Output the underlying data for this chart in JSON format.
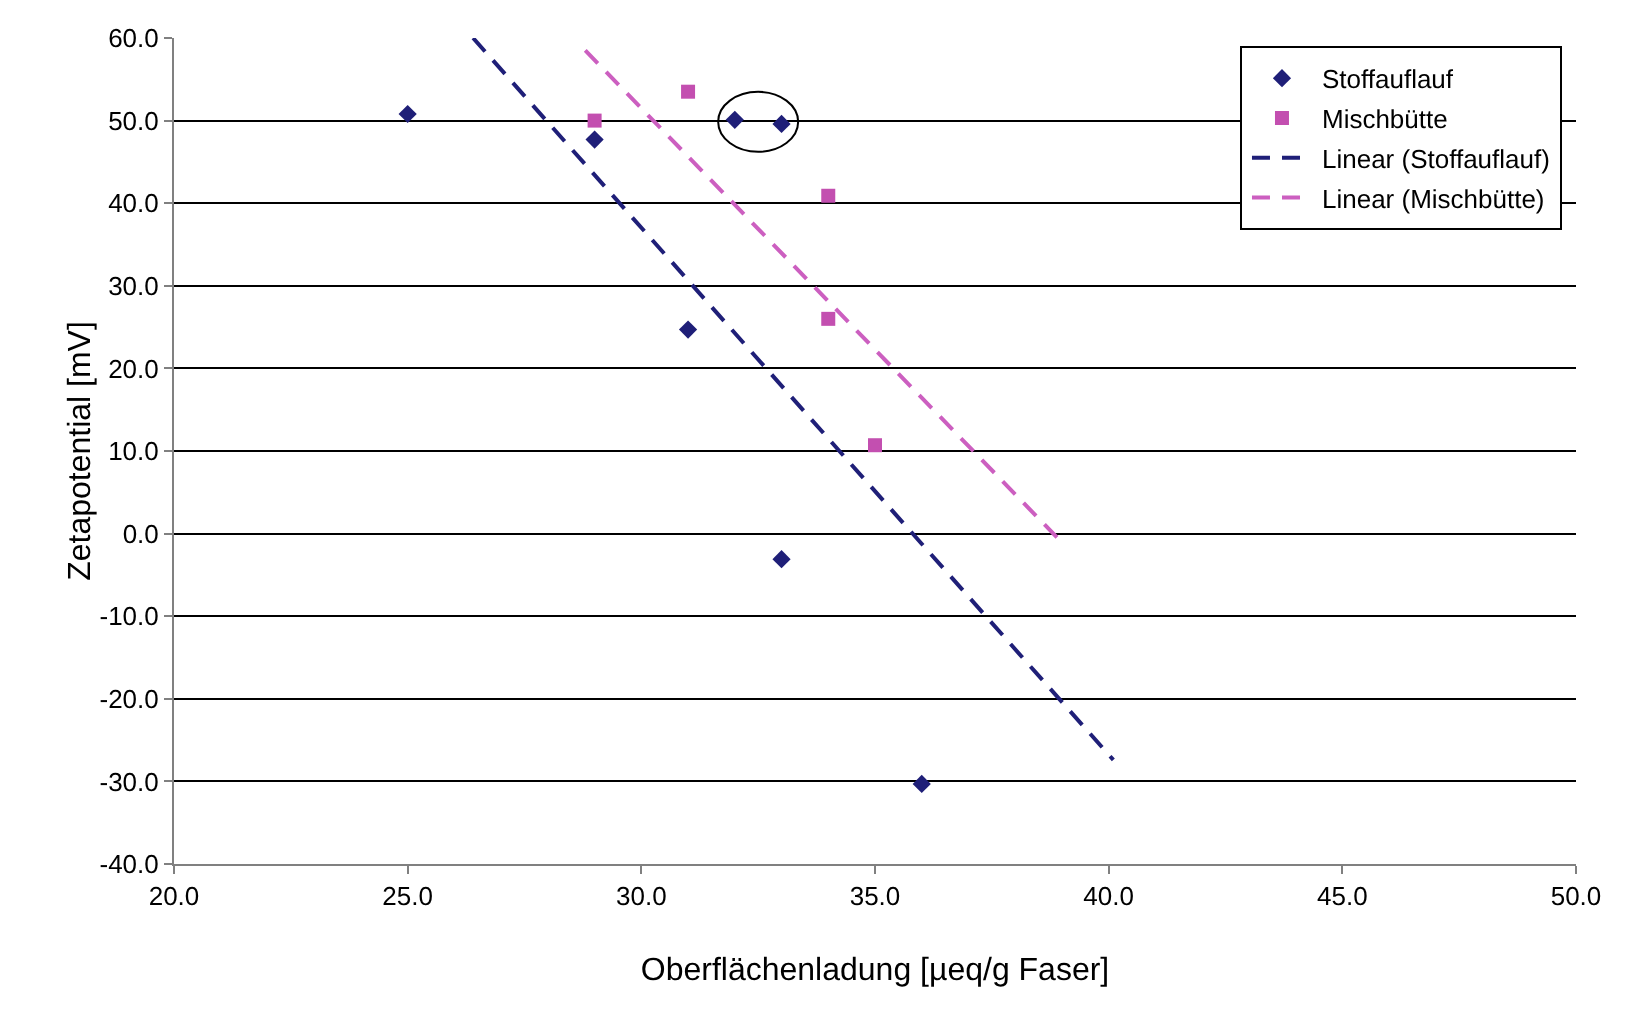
{
  "chart_data": {
    "type": "scatter",
    "xlabel": "Oberflächenladung [µeq/g Faser]",
    "ylabel": "Zetapotential [mV]",
    "series": [
      {
        "name": "Stoffauflauf",
        "marker": "diamond",
        "color": "#1f1f78",
        "x": [
          25,
          29,
          31,
          32,
          33,
          33,
          36
        ],
        "values": [
          50.8,
          47.7,
          24.7,
          50.1,
          49.6,
          -3.1,
          -30.3
        ]
      },
      {
        "name": "Mischbütte",
        "marker": "square",
        "color": "#c34fb0",
        "x": [
          29,
          31,
          34,
          34,
          35
        ],
        "values": [
          50.0,
          53.5,
          40.9,
          26.0,
          10.7
        ]
      },
      {
        "name": "Linear (Stoffauflauf)",
        "type": "line",
        "line_style": "dashed",
        "color": "#1f1f78",
        "x": [
          26.4,
          40.1
        ],
        "values": [
          60.0,
          -27.4
        ]
      },
      {
        "name": "Linear (Mischbütte)",
        "type": "line",
        "line_style": "dashed",
        "color": "#cc5fc0",
        "x": [
          28.8,
          38.9
        ],
        "values": [
          58.5,
          -0.5
        ]
      }
    ],
    "xlim": [
      20,
      50
    ],
    "ylim": [
      -40,
      60
    ],
    "xticks": [
      {
        "value": 20,
        "label": "20.0"
      },
      {
        "value": 25,
        "label": "25.0"
      },
      {
        "value": 30,
        "label": "30.0"
      },
      {
        "value": 35,
        "label": "35.0"
      },
      {
        "value": 40,
        "label": "40.0"
      },
      {
        "value": 45,
        "label": "45.0"
      },
      {
        "value": 50,
        "label": "50.0"
      }
    ],
    "yticks": [
      {
        "value": -40,
        "label": "-40.0"
      },
      {
        "value": -30,
        "label": "-30.0"
      },
      {
        "value": -20,
        "label": "-20.0"
      },
      {
        "value": -10,
        "label": "-10.0"
      },
      {
        "value": 0,
        "label": "0.0"
      },
      {
        "value": 10,
        "label": "10.0"
      },
      {
        "value": 20,
        "label": "20.0"
      },
      {
        "value": 30,
        "label": "30.0"
      },
      {
        "value": 40,
        "label": "40.0"
      },
      {
        "value": 50,
        "label": "50.0"
      },
      {
        "value": 60,
        "label": "60.0"
      }
    ],
    "grid": "y",
    "legend": "top right"
  }
}
